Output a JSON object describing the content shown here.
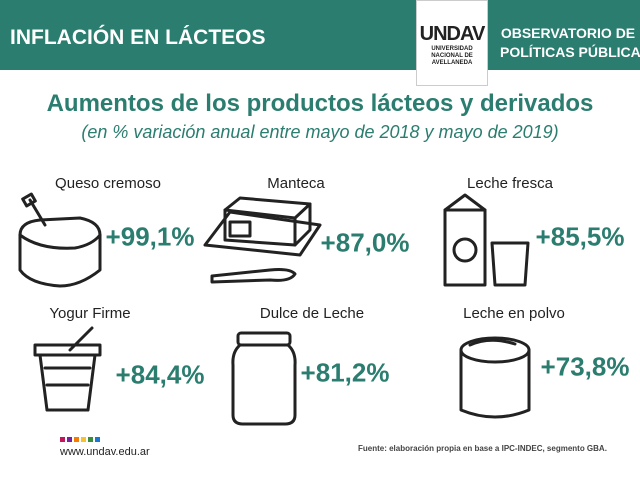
{
  "header": {
    "title": "INFLACIÓN EN LÁCTEOS",
    "logo": {
      "name": "UNDAV",
      "lines": [
        "UNIVERSIDAD",
        "NACIONAL DE",
        "AVELLANEDA"
      ]
    },
    "organization": [
      "OBSERVATORIO DE",
      "POLÍTICAS PÚBLICAS"
    ]
  },
  "title": "Aumentos de los productos lácteos y derivados",
  "subtitle": "(en % variación anual entre mayo de 2018 y mayo de 2019)",
  "products": [
    {
      "name": "Queso cremoso",
      "change": "+99,1%"
    },
    {
      "name": "Manteca",
      "change": "+87,0%"
    },
    {
      "name": "Leche fresca",
      "change": "+85,5%"
    },
    {
      "name": "Yogur Firme",
      "change": "+84,4%"
    },
    {
      "name": "Dulce de Leche",
      "change": "+81,2%"
    },
    {
      "name": "Leche en polvo",
      "change": "+73,8%"
    }
  ],
  "footer": {
    "website": "www.undav.edu.ar",
    "source": "Fuente: elaboración propia en base a IPC-INDEC, segmento GBA."
  }
}
